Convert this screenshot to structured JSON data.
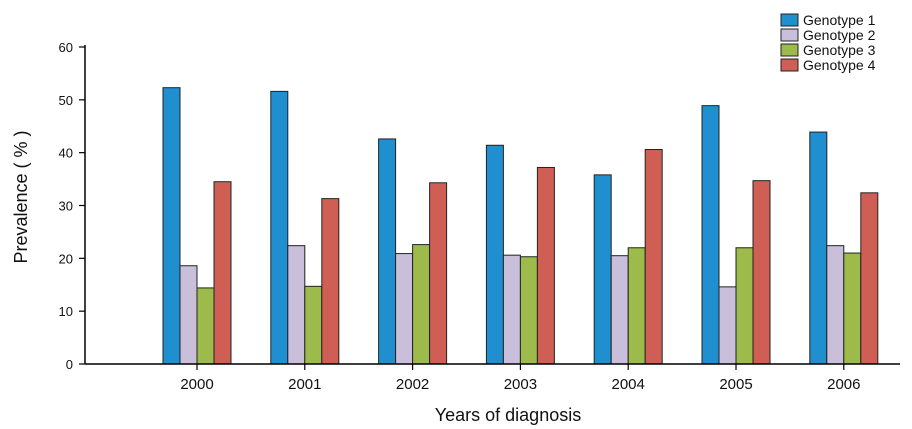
{
  "chart_data": {
    "type": "bar",
    "title": "",
    "xlabel": "Years of diagnosis",
    "ylabel": "Prevalence ( % )",
    "ylim": [
      0,
      60
    ],
    "yticks": [
      "0",
      "10",
      "20",
      "30",
      "40",
      "50",
      "60"
    ],
    "categories": [
      "2000",
      "2001",
      "2002",
      "2003",
      "2004",
      "2005",
      "2006"
    ],
    "series": [
      {
        "name": "Genotype 1",
        "color": "#1f8fcf",
        "values": [
          52.3,
          51.6,
          42.6,
          41.4,
          35.8,
          48.9,
          43.9
        ]
      },
      {
        "name": "Genotype 2",
        "color": "#c9bfdb",
        "values": [
          18.6,
          22.4,
          20.9,
          20.6,
          20.5,
          14.6,
          22.4
        ]
      },
      {
        "name": "Genotype 3",
        "color": "#9dbb4a",
        "values": [
          14.4,
          14.7,
          22.6,
          20.3,
          22.0,
          22.0,
          21.0
        ]
      },
      {
        "name": "Genotype 4",
        "color": "#cf5f55",
        "values": [
          34.5,
          31.3,
          34.3,
          37.2,
          40.6,
          34.7,
          32.4
        ]
      }
    ],
    "legend_position": "top-right",
    "grid": false
  }
}
